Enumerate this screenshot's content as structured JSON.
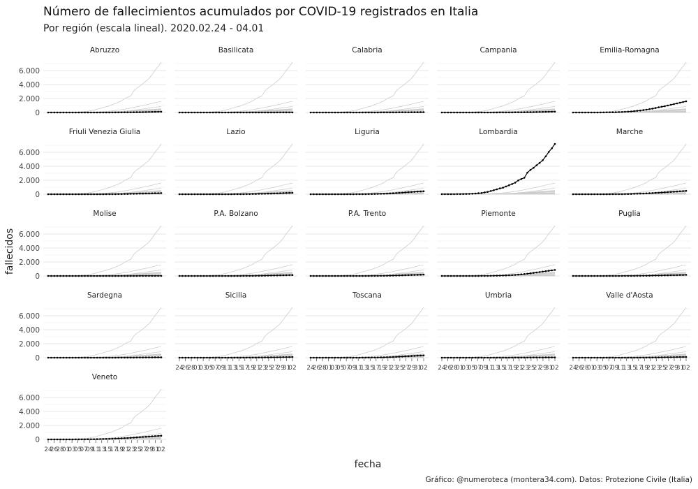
{
  "chart_data": {
    "type": "line",
    "title": "Número de fallecimientos acumulados por COVID-19 registrados en Italia",
    "subtitle": "Por región (escala lineal). 2020.02.24 - 04.01",
    "xlabel": "fecha",
    "ylabel": "fallecidos",
    "caption": "Gráfico: @numeroteca (montera34.com). Datos: Protezione Civile (Italia)",
    "ylim": [
      0,
      7400
    ],
    "yticks": [
      0,
      2000,
      4000,
      6000
    ],
    "ytick_labels": [
      "0",
      "2.000",
      "4.000",
      "6.000"
    ],
    "xtick_labels": [
      "24",
      "26",
      "28",
      "01",
      "03",
      "05",
      "07",
      "09",
      "11",
      "13",
      "15",
      "17",
      "19",
      "21",
      "23",
      "25",
      "27",
      "29",
      "31",
      "02"
    ],
    "x": [
      "02-24",
      "02-25",
      "02-26",
      "02-27",
      "02-28",
      "02-29",
      "03-01",
      "03-02",
      "03-03",
      "03-04",
      "03-05",
      "03-06",
      "03-07",
      "03-08",
      "03-09",
      "03-10",
      "03-11",
      "03-12",
      "03-13",
      "03-14",
      "03-15",
      "03-16",
      "03-17",
      "03-18",
      "03-19",
      "03-20",
      "03-21",
      "03-22",
      "03-23",
      "03-24",
      "03-25",
      "03-26",
      "03-27",
      "03-28",
      "03-29",
      "03-30",
      "03-31",
      "04-01"
    ],
    "grid": true,
    "background_series_color": "#cccccc",
    "highlight_color": "#000000",
    "series": [
      {
        "name": "Abruzzo",
        "values": [
          0,
          0,
          0,
          0,
          0,
          0,
          0,
          0,
          0,
          0,
          0,
          0,
          0,
          0,
          0,
          0,
          0,
          1,
          1,
          3,
          4,
          5,
          6,
          10,
          13,
          16,
          19,
          25,
          30,
          37,
          45,
          52,
          61,
          70,
          80,
          91,
          103,
          114
        ]
      },
      {
        "name": "Basilicata",
        "values": [
          0,
          0,
          0,
          0,
          0,
          0,
          0,
          0,
          0,
          0,
          0,
          0,
          0,
          0,
          0,
          0,
          0,
          0,
          0,
          0,
          0,
          0,
          0,
          0,
          1,
          1,
          1,
          1,
          2,
          2,
          3,
          4,
          5,
          6,
          7,
          8,
          9,
          10
        ]
      },
      {
        "name": "Calabria",
        "values": [
          0,
          0,
          0,
          0,
          0,
          0,
          0,
          0,
          0,
          0,
          0,
          0,
          0,
          0,
          0,
          0,
          1,
          1,
          1,
          2,
          2,
          3,
          4,
          5,
          6,
          8,
          10,
          12,
          14,
          16,
          18,
          21,
          25,
          28,
          31,
          35,
          38,
          42
        ]
      },
      {
        "name": "Campania",
        "values": [
          0,
          0,
          0,
          0,
          0,
          0,
          0,
          0,
          0,
          0,
          0,
          0,
          0,
          0,
          0,
          0,
          1,
          2,
          3,
          5,
          6,
          8,
          10,
          12,
          15,
          18,
          25,
          30,
          38,
          45,
          53,
          60,
          70,
          80,
          90,
          100,
          110,
          120
        ]
      },
      {
        "name": "Emilia-Romagna",
        "values": [
          0,
          0,
          0,
          0,
          0,
          0,
          1,
          2,
          4,
          8,
          12,
          18,
          25,
          35,
          45,
          60,
          75,
          100,
          120,
          150,
          190,
          240,
          280,
          340,
          400,
          480,
          550,
          640,
          740,
          820,
          900,
          1000,
          1100,
          1200,
          1300,
          1400,
          1500,
          1600
        ]
      },
      {
        "name": "Friuli Venezia Giulia",
        "values": [
          0,
          0,
          0,
          0,
          0,
          0,
          0,
          0,
          0,
          0,
          0,
          0,
          0,
          0,
          0,
          0,
          1,
          2,
          3,
          5,
          8,
          12,
          15,
          20,
          25,
          35,
          45,
          55,
          65,
          75,
          85,
          95,
          105,
          115,
          125,
          135,
          145,
          155
        ]
      },
      {
        "name": "Lazio",
        "values": [
          0,
          0,
          0,
          0,
          0,
          0,
          0,
          0,
          0,
          0,
          0,
          0,
          0,
          0,
          0,
          1,
          2,
          3,
          5,
          7,
          10,
          15,
          20,
          25,
          35,
          45,
          55,
          65,
          75,
          85,
          95,
          110,
          125,
          140,
          155,
          170,
          185,
          200
        ]
      },
      {
        "name": "Liguria",
        "values": [
          0,
          0,
          0,
          0,
          0,
          0,
          0,
          0,
          0,
          0,
          0,
          1,
          2,
          3,
          4,
          6,
          8,
          10,
          15,
          20,
          30,
          40,
          50,
          60,
          70,
          90,
          110,
          130,
          160,
          190,
          220,
          260,
          290,
          320,
          350,
          380,
          400,
          420
        ]
      },
      {
        "name": "Lombardia",
        "values": [
          5,
          7,
          9,
          12,
          15,
          20,
          25,
          30,
          40,
          50,
          70,
          100,
          135,
          170,
          260,
          330,
          460,
          570,
          700,
          830,
          930,
          1110,
          1280,
          1460,
          1660,
          1970,
          2170,
          2360,
          3090,
          3480,
          3780,
          4130,
          4480,
          4860,
          5420,
          6050,
          6570,
          7200
        ]
      },
      {
        "name": "Marche",
        "values": [
          0,
          0,
          0,
          0,
          0,
          0,
          0,
          0,
          0,
          0,
          1,
          2,
          3,
          5,
          8,
          12,
          15,
          20,
          30,
          40,
          55,
          70,
          85,
          100,
          120,
          140,
          160,
          185,
          210,
          240,
          270,
          300,
          330,
          360,
          390,
          420,
          450,
          480
        ]
      },
      {
        "name": "Molise",
        "values": [
          0,
          0,
          0,
          0,
          0,
          0,
          0,
          0,
          0,
          0,
          0,
          0,
          0,
          0,
          0,
          0,
          0,
          0,
          0,
          0,
          0,
          1,
          1,
          1,
          1,
          2,
          2,
          3,
          3,
          4,
          5,
          6,
          7,
          8,
          9,
          10,
          11,
          12
        ]
      },
      {
        "name": "P.A. Bolzano",
        "values": [
          0,
          0,
          0,
          0,
          0,
          0,
          0,
          0,
          0,
          0,
          0,
          0,
          0,
          0,
          0,
          0,
          0,
          0,
          1,
          2,
          3,
          5,
          8,
          11,
          15,
          20,
          25,
          30,
          40,
          50,
          60,
          70,
          80,
          90,
          100,
          110,
          120,
          130
        ]
      },
      {
        "name": "P.A. Trento",
        "values": [
          0,
          0,
          0,
          0,
          0,
          0,
          0,
          0,
          0,
          0,
          0,
          0,
          0,
          0,
          0,
          0,
          0,
          1,
          2,
          4,
          6,
          9,
          12,
          16,
          20,
          30,
          40,
          50,
          60,
          75,
          90,
          105,
          120,
          135,
          150,
          165,
          180,
          200
        ]
      },
      {
        "name": "Piemonte",
        "values": [
          0,
          0,
          0,
          0,
          0,
          0,
          0,
          0,
          0,
          0,
          1,
          2,
          3,
          5,
          8,
          12,
          20,
          30,
          40,
          50,
          65,
          80,
          100,
          120,
          150,
          190,
          230,
          270,
          320,
          380,
          440,
          500,
          560,
          620,
          680,
          740,
          800,
          860
        ]
      },
      {
        "name": "Puglia",
        "values": [
          0,
          0,
          0,
          0,
          0,
          0,
          0,
          0,
          0,
          0,
          0,
          1,
          1,
          2,
          3,
          4,
          5,
          6,
          8,
          10,
          14,
          18,
          22,
          27,
          33,
          40,
          47,
          55,
          65,
          75,
          85,
          95,
          105,
          115,
          125,
          135,
          145,
          160
        ]
      },
      {
        "name": "Sardegna",
        "values": [
          0,
          0,
          0,
          0,
          0,
          0,
          0,
          0,
          0,
          0,
          0,
          0,
          0,
          0,
          0,
          0,
          0,
          0,
          1,
          1,
          2,
          3,
          4,
          5,
          7,
          9,
          11,
          13,
          15,
          18,
          21,
          24,
          27,
          30,
          33,
          36,
          40,
          44
        ]
      },
      {
        "name": "Sicilia",
        "values": [
          0,
          0,
          0,
          0,
          0,
          0,
          0,
          0,
          0,
          0,
          0,
          0,
          0,
          0,
          0,
          0,
          0,
          1,
          2,
          3,
          4,
          5,
          7,
          9,
          12,
          15,
          18,
          22,
          27,
          33,
          40,
          47,
          54,
          61,
          68,
          75,
          82,
          90
        ]
      },
      {
        "name": "Toscana",
        "values": [
          0,
          0,
          0,
          0,
          0,
          0,
          0,
          0,
          0,
          0,
          0,
          0,
          0,
          0,
          1,
          2,
          3,
          5,
          8,
          12,
          16,
          20,
          25,
          35,
          45,
          60,
          75,
          95,
          115,
          135,
          160,
          185,
          210,
          235,
          260,
          285,
          305,
          325
        ]
      },
      {
        "name": "Umbria",
        "values": [
          0,
          0,
          0,
          0,
          0,
          0,
          0,
          0,
          0,
          0,
          0,
          0,
          0,
          0,
          0,
          0,
          0,
          0,
          1,
          1,
          2,
          3,
          4,
          5,
          6,
          8,
          10,
          12,
          14,
          16,
          18,
          20,
          22,
          24,
          26,
          28,
          30,
          32
        ]
      },
      {
        "name": "Valle d'Aosta",
        "values": [
          0,
          0,
          0,
          0,
          0,
          0,
          0,
          0,
          0,
          0,
          0,
          0,
          0,
          0,
          0,
          0,
          0,
          1,
          2,
          3,
          4,
          6,
          8,
          10,
          14,
          18,
          22,
          28,
          34,
          40,
          48,
          56,
          64,
          72,
          80,
          88,
          95,
          102
        ]
      },
      {
        "name": "Veneto",
        "values": [
          0,
          1,
          1,
          2,
          2,
          2,
          3,
          4,
          5,
          7,
          9,
          12,
          15,
          20,
          25,
          30,
          40,
          50,
          60,
          70,
          80,
          100,
          120,
          140,
          160,
          180,
          200,
          230,
          260,
          290,
          320,
          350,
          380,
          410,
          440,
          470,
          500,
          530
        ]
      }
    ]
  }
}
